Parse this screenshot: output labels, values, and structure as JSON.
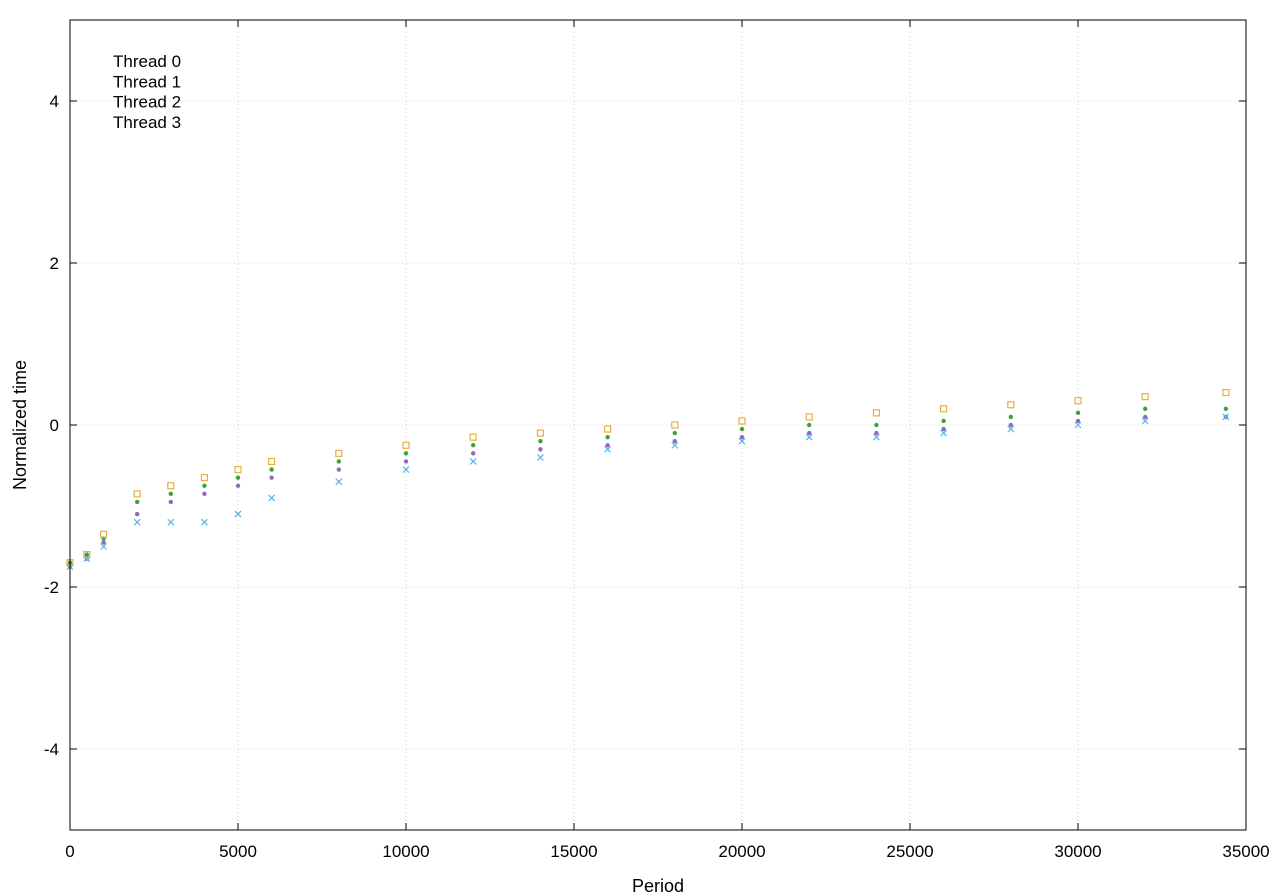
{
  "chart_data": {
    "type": "scatter",
    "title": "",
    "xlabel": "Period",
    "ylabel": "Normalized time",
    "xlim": [
      0,
      35000
    ],
    "ylim": [
      -5,
      5
    ],
    "x_ticks": [
      0,
      5000,
      10000,
      15000,
      20000,
      25000,
      30000,
      35000
    ],
    "x_tick_labels": [
      "0",
      "5000",
      "10000",
      "15000",
      "20000",
      "25000",
      "30000",
      "35000"
    ],
    "y_ticks": [
      -4,
      -2,
      0,
      2,
      4
    ],
    "y_tick_labels": [
      "-4",
      "-2",
      "0",
      "2",
      "4"
    ],
    "grid": true,
    "legend_position": "top-left",
    "series": [
      {
        "name": "Thread 0",
        "color": "#9468b8",
        "marker": "dot",
        "x": [
          0,
          500,
          1000,
          2000,
          3000,
          4000,
          5000,
          6000,
          8000,
          10000,
          12000,
          14000,
          16000,
          18000,
          20000,
          22000,
          24000,
          26000,
          28000,
          30000,
          32000,
          34400
        ],
        "y": [
          -1.75,
          -1.65,
          -1.45,
          -1.1,
          -0.95,
          -0.85,
          -0.75,
          -0.65,
          -0.55,
          -0.45,
          -0.35,
          -0.3,
          -0.25,
          -0.2,
          -0.15,
          -0.1,
          -0.1,
          -0.05,
          0.0,
          0.05,
          0.1,
          0.1
        ]
      },
      {
        "name": "Thread 1",
        "color": "#3aa33a",
        "marker": "dot",
        "x": [
          0,
          500,
          1000,
          2000,
          3000,
          4000,
          5000,
          6000,
          8000,
          10000,
          12000,
          14000,
          16000,
          18000,
          20000,
          22000,
          24000,
          26000,
          28000,
          30000,
          32000,
          34400
        ],
        "y": [
          -1.7,
          -1.6,
          -1.4,
          -0.95,
          -0.85,
          -0.75,
          -0.65,
          -0.55,
          -0.45,
          -0.35,
          -0.25,
          -0.2,
          -0.15,
          -0.1,
          -0.05,
          0.0,
          0.0,
          0.05,
          0.1,
          0.15,
          0.2,
          0.2
        ]
      },
      {
        "name": "Thread 2",
        "color": "#56b4e9",
        "marker": "x",
        "x": [
          0,
          500,
          1000,
          2000,
          3000,
          4000,
          5000,
          6000,
          8000,
          10000,
          12000,
          14000,
          16000,
          18000,
          20000,
          22000,
          24000,
          26000,
          28000,
          30000,
          32000,
          34400
        ],
        "y": [
          -1.75,
          -1.65,
          -1.5,
          -1.2,
          -1.2,
          -1.2,
          -1.1,
          -0.9,
          -0.7,
          -0.55,
          -0.45,
          -0.4,
          -0.3,
          -0.25,
          -0.2,
          -0.15,
          -0.15,
          -0.1,
          -0.05,
          0.0,
          0.05,
          0.1
        ]
      },
      {
        "name": "Thread 3",
        "color": "#e6b040",
        "marker": "square",
        "x": [
          0,
          500,
          1000,
          2000,
          3000,
          4000,
          5000,
          6000,
          8000,
          10000,
          12000,
          14000,
          16000,
          18000,
          20000,
          22000,
          24000,
          26000,
          28000,
          30000,
          32000,
          34400
        ],
        "y": [
          -1.7,
          -1.6,
          -1.35,
          -0.85,
          -0.75,
          -0.65,
          -0.55,
          -0.45,
          -0.35,
          -0.25,
          -0.15,
          -0.1,
          -0.05,
          0.0,
          0.05,
          0.1,
          0.15,
          0.2,
          0.25,
          0.3,
          0.35,
          0.4
        ]
      }
    ]
  }
}
